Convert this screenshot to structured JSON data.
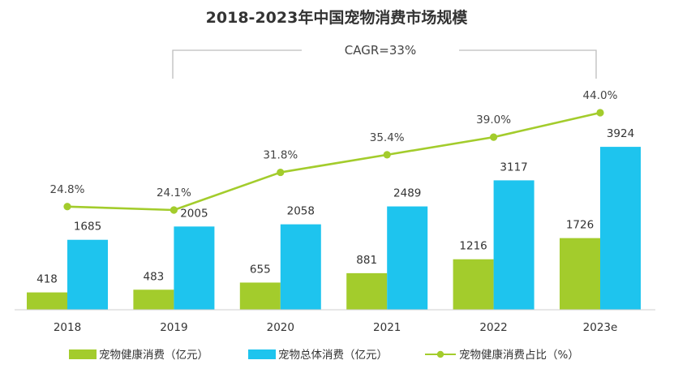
{
  "chart_data": {
    "type": "bar",
    "title": "2018-2023年中国宠物消费市场规模",
    "annotation": "CAGR=33%",
    "categories": [
      "2018",
      "2019",
      "2020",
      "2021",
      "2022",
      "2023e"
    ],
    "series": [
      {
        "name": "宠物健康消费（亿元）",
        "type": "bar",
        "color": "#a3cc2c",
        "values": [
          418,
          483,
          655,
          881,
          1216,
          1726
        ]
      },
      {
        "name": "宠物总体消费（亿元）",
        "type": "bar",
        "color": "#1ec4ee",
        "values": [
          1685,
          2005,
          2058,
          2489,
          3117,
          3924
        ]
      },
      {
        "name": "宠物健康消费占比（%）",
        "type": "line",
        "color": "#a3cc2c",
        "values": [
          24.8,
          24.1,
          31.8,
          35.4,
          39.0,
          44.0
        ],
        "labels": [
          "24.8%",
          "24.1%",
          "31.8%",
          "35.4%",
          "39.0%",
          "44.0%"
        ]
      }
    ],
    "xlabel": "",
    "ylabel": "",
    "grid": false,
    "legend": "bottom"
  }
}
